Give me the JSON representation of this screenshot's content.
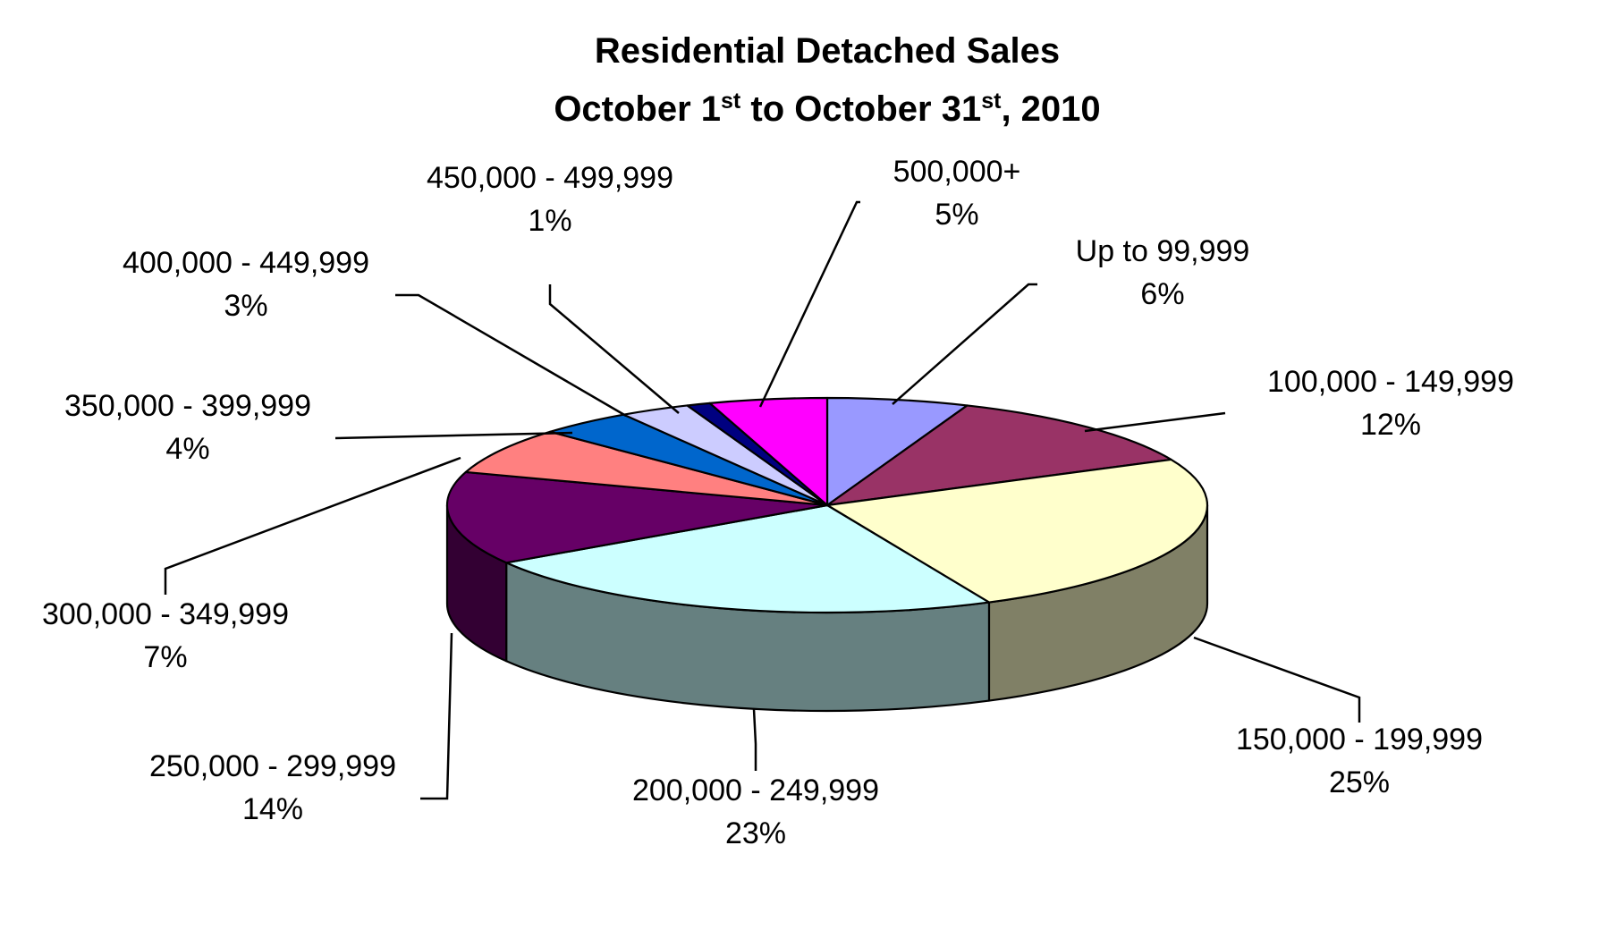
{
  "chart_data": {
    "type": "pie",
    "style": "3d",
    "title_lines": [
      [
        {
          "text": "Residential Detached Sales"
        }
      ],
      [
        {
          "text": "October 1"
        },
        {
          "text": "st",
          "sup": true
        },
        {
          "text": " to October 31"
        },
        {
          "text": "st",
          "sup": true
        },
        {
          "text": ", 2010"
        }
      ]
    ],
    "slices": [
      {
        "label": "Up to 99,999",
        "value": 6,
        "value_label": "6%",
        "color": "#9999FF",
        "side_color": "#6B6BB3"
      },
      {
        "label": "100,000 - 149,999",
        "value": 12,
        "value_label": "12%",
        "color": "#993366",
        "side_color": "#6B2447"
      },
      {
        "label": "150,000 - 199,999",
        "value": 25,
        "value_label": "25%",
        "color": "#FFFFCC",
        "side_color": "#808066"
      },
      {
        "label": "200,000 - 249,999",
        "value": 23,
        "value_label": "23%",
        "color": "#CCFFFF",
        "side_color": "#668080"
      },
      {
        "label": "250,000 - 299,999",
        "value": 14,
        "value_label": "14%",
        "color": "#660066",
        "side_color": "#330033"
      },
      {
        "label": "300,000 - 349,999",
        "value": 7,
        "value_label": "7%",
        "color": "#FF8080",
        "side_color": "#B35A5A"
      },
      {
        "label": "350,000 - 399,999",
        "value": 4,
        "value_label": "4%",
        "color": "#0066CC",
        "side_color": "#00478F"
      },
      {
        "label": "400,000 - 449,999",
        "value": 3,
        "value_label": "3%",
        "color": "#CCCCFF",
        "side_color": "#8F8FB3"
      },
      {
        "label": "450,000 - 499,999",
        "value": 1,
        "value_label": "1%",
        "color": "#000080",
        "side_color": "#00005A"
      },
      {
        "label": "500,000+",
        "value": 5,
        "value_label": "5%",
        "color": "#FF00FF",
        "side_color": "#B300B3"
      }
    ]
  }
}
